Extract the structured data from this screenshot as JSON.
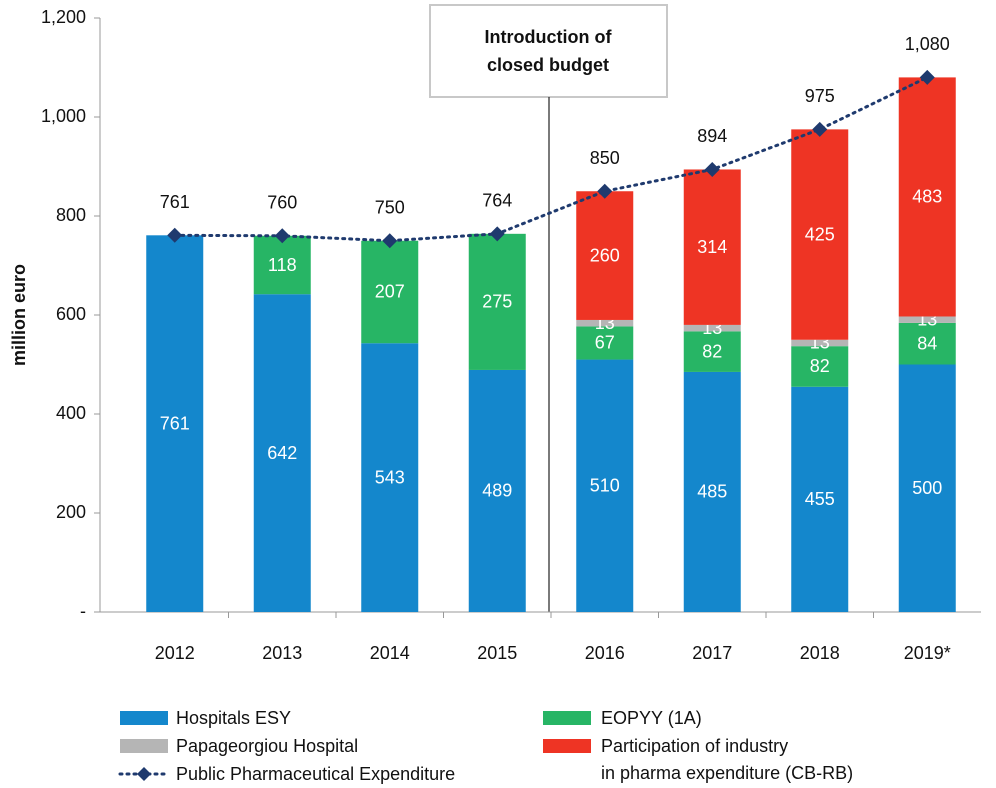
{
  "chart_data": {
    "type": "bar",
    "stacked": true,
    "y_label": "million euro",
    "annotation": [
      "Introduction of",
      "closed budget"
    ],
    "categories": [
      "2012",
      "2013",
      "2014",
      "2015",
      "2016",
      "2017",
      "2018",
      "2019*"
    ],
    "series": [
      {
        "name": "Hospitals ESY",
        "color": "#1487cc",
        "values": [
          761,
          642,
          543,
          489,
          510,
          485,
          455,
          500
        ]
      },
      {
        "name": "EOPYY (1A)",
        "color": "#27b565",
        "values": [
          null,
          118,
          207,
          275,
          67,
          82,
          82,
          84
        ]
      },
      {
        "name": "Papageorgiou Hospital",
        "color": "#b5b5b5",
        "values": [
          null,
          null,
          null,
          null,
          13,
          13,
          13,
          13
        ]
      },
      {
        "name": "Participation of industry\nin pharma expenditure (CB-RB)",
        "color": "#ee3424",
        "values": [
          null,
          null,
          null,
          null,
          260,
          314,
          425,
          483
        ]
      },
      {
        "name": "Public Pharmaceutical Expenditure",
        "color": "#1f3a6e",
        "type": "line",
        "style": "dotted",
        "values": [
          761,
          760,
          750,
          764,
          850,
          894,
          975,
          1080
        ],
        "value_labels": [
          "761",
          "760",
          "750",
          "764",
          "850",
          "894",
          "975",
          "1,080"
        ]
      }
    ],
    "ylim": [
      0,
      1200
    ],
    "yticks": [
      {
        "value": 0,
        "label": "-"
      },
      200,
      400,
      600,
      800,
      {
        "value": 1000,
        "label": "1,000"
      },
      {
        "value": 1200,
        "label": "1,200"
      }
    ],
    "grid": false
  }
}
